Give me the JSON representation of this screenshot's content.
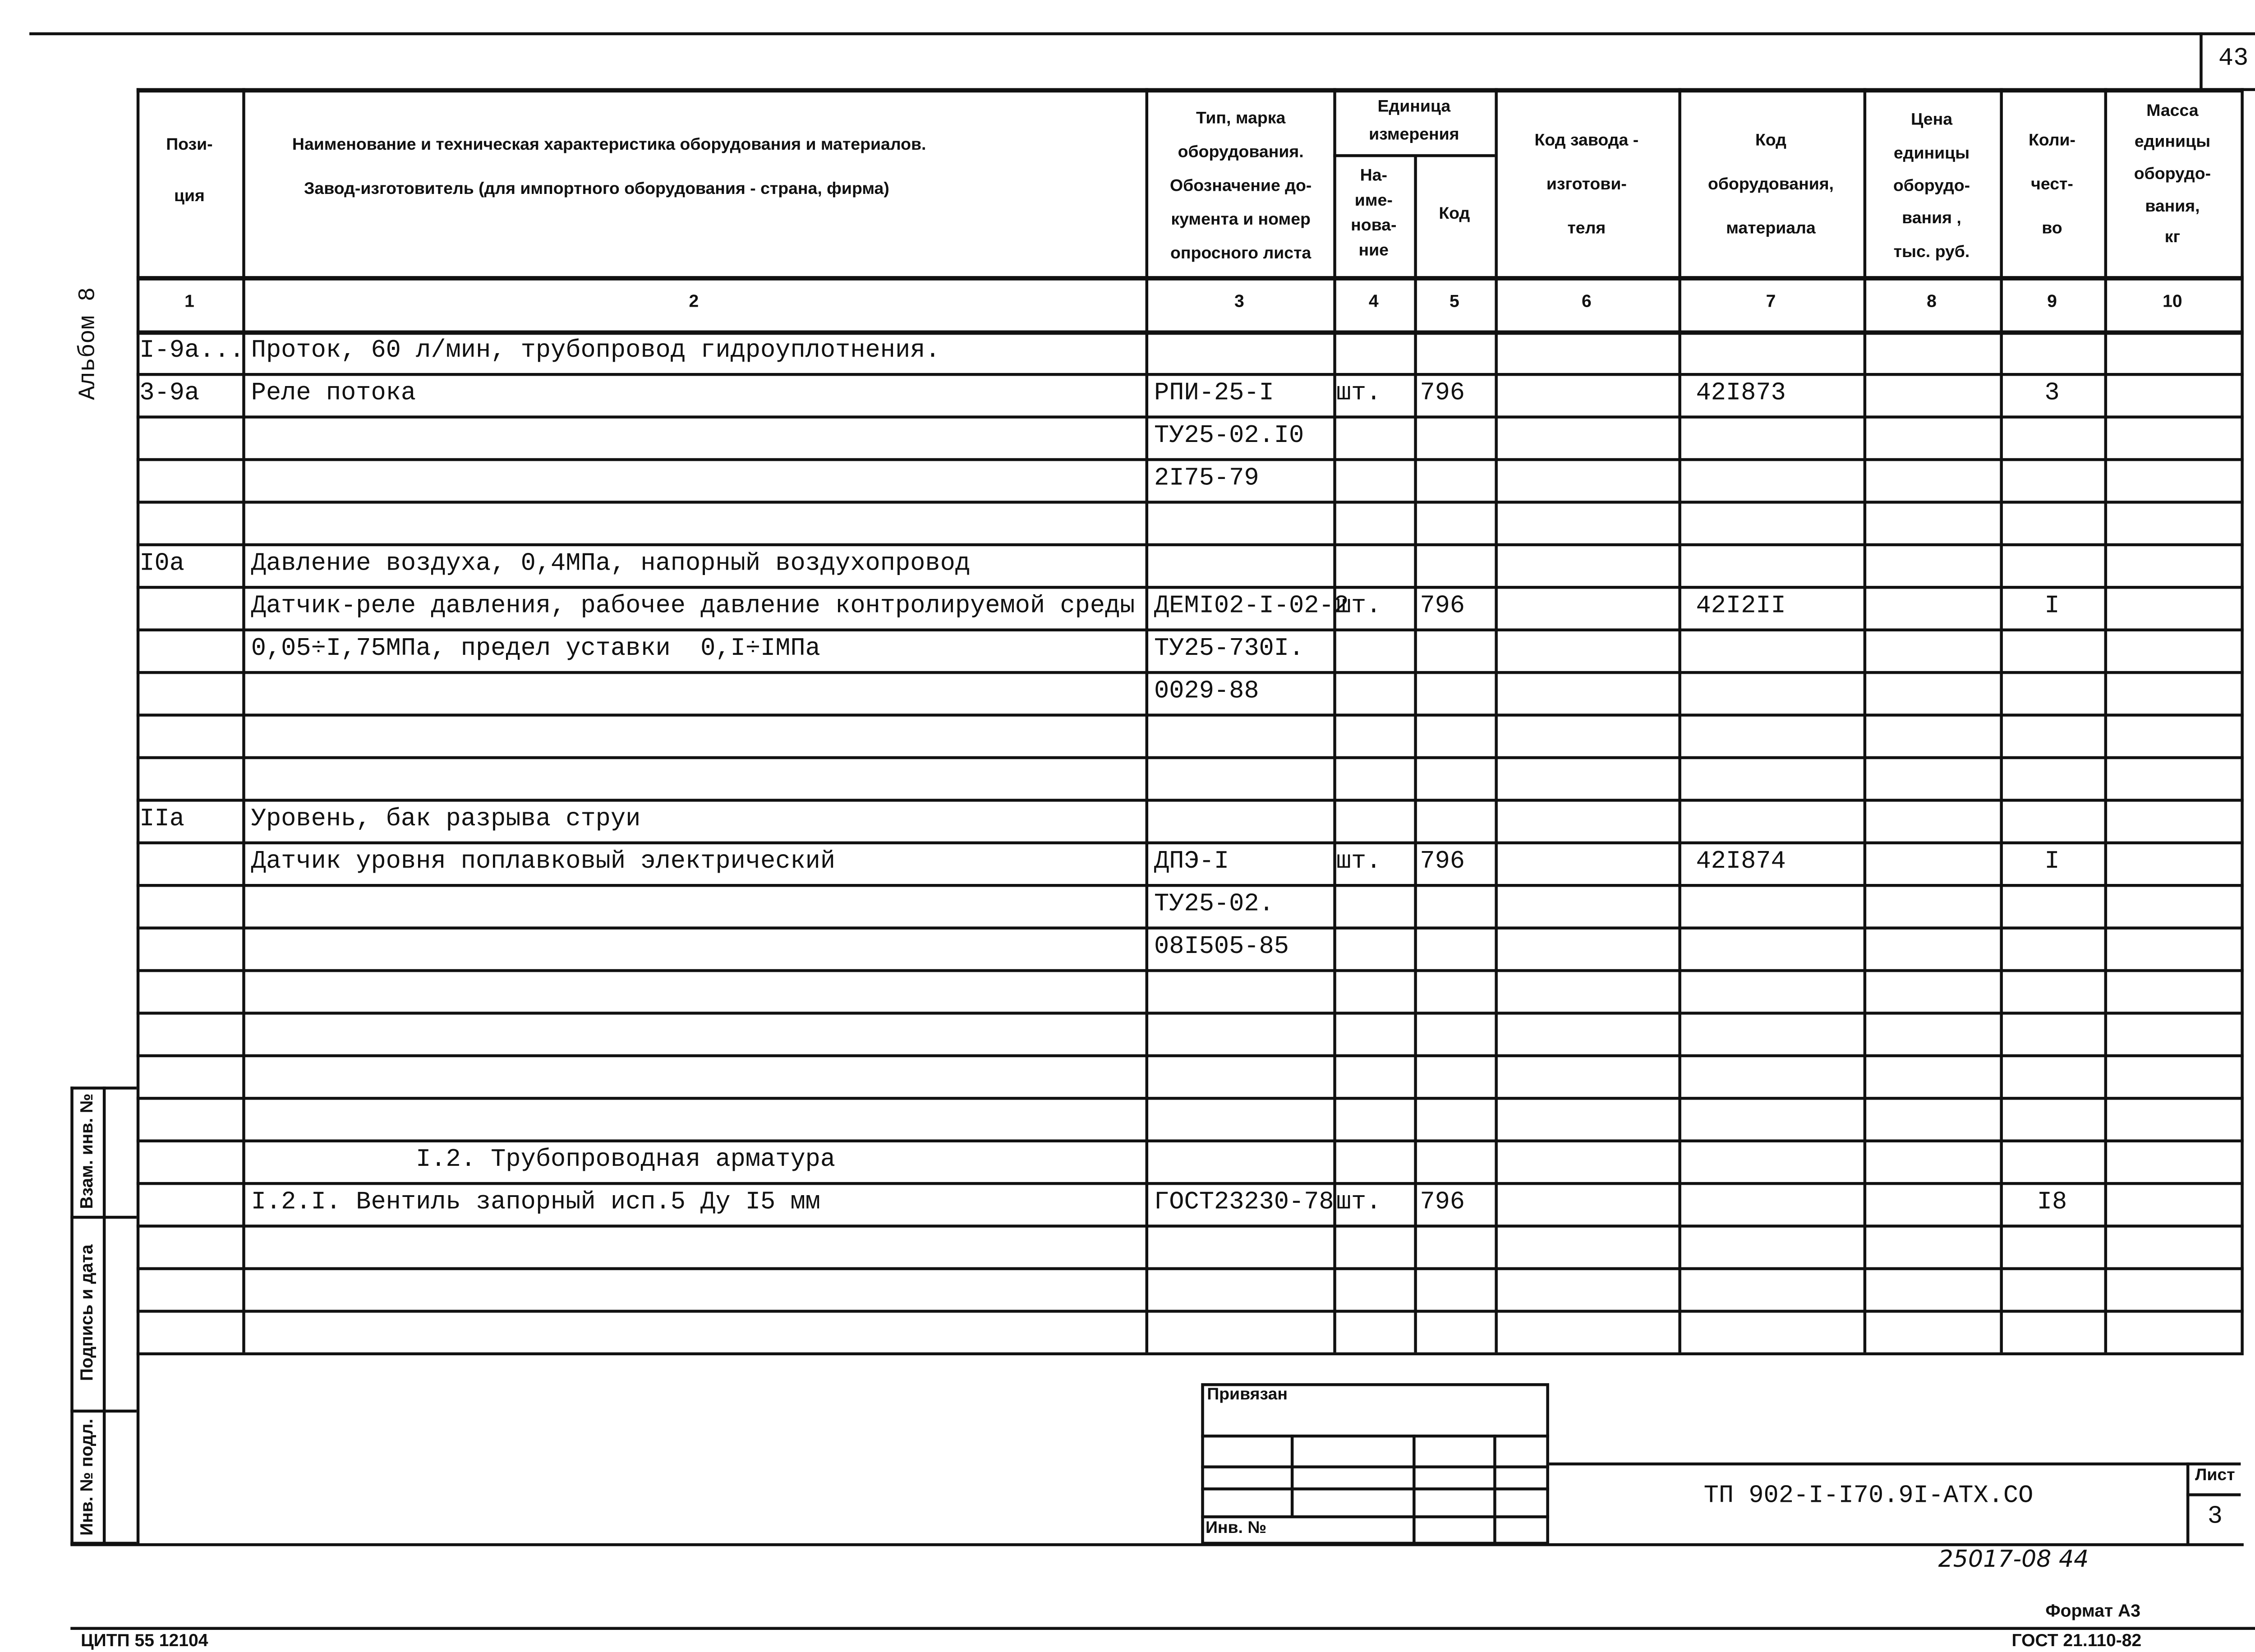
{
  "page_number": "43",
  "album_label": "Альбом 8",
  "header": {
    "col1": [
      "Пози-",
      "ция"
    ],
    "col2": [
      "Наименование и техническая характеристика оборудования и материалов.",
      "Завод-изготовитель (для импортного оборудования - страна, фирма)"
    ],
    "col3": [
      "Тип, марка",
      "оборудования.",
      "Обозначение до-",
      "кумента и номер",
      "опросного листа"
    ],
    "unit_group": [
      "Единица",
      "измерения"
    ],
    "col4": [
      "На-",
      "име-",
      "нова-",
      "ние"
    ],
    "col5": [
      "Код"
    ],
    "col6": [
      "Код завода -",
      "изготови-",
      "теля"
    ],
    "col7": [
      "Код",
      "оборудования,",
      "материала"
    ],
    "col8": [
      "Цена",
      "единицы",
      "оборудо-",
      "вания ,",
      "тыс. руб."
    ],
    "col9": [
      "Коли-",
      "чест-",
      "во"
    ],
    "col10": [
      "Масса",
      "единицы",
      "оборудо-",
      "вания,",
      "кг"
    ],
    "numbers": [
      "1",
      "2",
      "3",
      "4",
      "5",
      "6",
      "7",
      "8",
      "9",
      "10"
    ]
  },
  "rows": [
    [
      "I-9а...",
      "Проток, 60 л/мин, трубопровод гидроуплотнения.",
      "",
      "",
      "",
      "",
      "",
      "",
      "",
      ""
    ],
    [
      "3-9а",
      "Реле потока",
      "РПИ-25-I",
      "шт.",
      "796",
      "",
      "42I873",
      "",
      "3",
      ""
    ],
    [
      "",
      "",
      "ТУ25-02.I0",
      "",
      "",
      "",
      "",
      "",
      "",
      ""
    ],
    [
      "",
      "",
      "2I75-79",
      "",
      "",
      "",
      "",
      "",
      "",
      ""
    ],
    [
      "",
      "",
      "",
      "",
      "",
      "",
      "",
      "",
      "",
      ""
    ],
    [
      "I0а",
      "Давление воздуха, 0,4МПа, напорный воздухопровод",
      "",
      "",
      "",
      "",
      "",
      "",
      "",
      ""
    ],
    [
      "",
      "Датчик-реле давления, рабочее давление контролируемой среды",
      "ДЕМI02-I-02-2",
      "шт.",
      "796",
      "",
      "42I2II",
      "",
      "I",
      ""
    ],
    [
      "",
      "0,05÷I,75МПа, предел уставки  0,I÷IМПа",
      "ТУ25-730I.",
      "",
      "",
      "",
      "",
      "",
      "",
      ""
    ],
    [
      "",
      "",
      "0029-88",
      "",
      "",
      "",
      "",
      "",
      "",
      ""
    ],
    [
      "",
      "",
      "",
      "",
      "",
      "",
      "",
      "",
      "",
      ""
    ],
    [
      "",
      "",
      "",
      "",
      "",
      "",
      "",
      "",
      "",
      ""
    ],
    [
      "IIа",
      "Уровень, бак разрыва струи",
      "",
      "",
      "",
      "",
      "",
      "",
      "",
      ""
    ],
    [
      "",
      "Датчик уровня поплавковый электрический",
      "ДПЭ-I",
      "шт.",
      "796",
      "",
      "42I874",
      "",
      "I",
      ""
    ],
    [
      "",
      "",
      "ТУ25-02.",
      "",
      "",
      "",
      "",
      "",
      "",
      ""
    ],
    [
      "",
      "",
      "08I505-85",
      "",
      "",
      "",
      "",
      "",
      "",
      ""
    ],
    [
      "",
      "",
      "",
      "",
      "",
      "",
      "",
      "",
      "",
      ""
    ],
    [
      "",
      "",
      "",
      "",
      "",
      "",
      "",
      "",
      "",
      ""
    ],
    [
      "",
      "",
      "",
      "",
      "",
      "",
      "",
      "",
      "",
      ""
    ],
    [
      "",
      "",
      "",
      "",
      "",
      "",
      "",
      "",
      "",
      ""
    ],
    [
      "",
      "           I.2. Трубопроводная арматура",
      "",
      "",
      "",
      "",
      "",
      "",
      "",
      ""
    ],
    [
      "",
      "I.2.I. Вентиль запорный исп.5 Ду I5 мм",
      "ГОСТ23230-78",
      "шт.",
      "796",
      "",
      "",
      "",
      "I8",
      ""
    ],
    [
      "",
      "",
      "",
      "",
      "",
      "",
      "",
      "",
      "",
      ""
    ],
    [
      "",
      "",
      "",
      "",
      "",
      "",
      "",
      "",
      "",
      ""
    ],
    [
      "",
      "",
      "",
      "",
      "",
      "",
      "",
      "",
      "",
      ""
    ]
  ],
  "side_stamp": {
    "replaced_inv": "Взам. инв. №",
    "signature_date": "Подпись и дата",
    "orig_inv": "Инв. № подл."
  },
  "title_block": {
    "linked": "Привязан",
    "inv_no": "Инв. №",
    "doc_code": "ТП  902-I-I70.9I-АТХ.СО",
    "sheet_label": "Лист",
    "sheet_number": "3"
  },
  "handwritten_number": "25017-08  44",
  "format": "Формат А3",
  "footer_left": "ЦИТП  55  12104",
  "footer_right": "ГОСТ 21.110-82"
}
